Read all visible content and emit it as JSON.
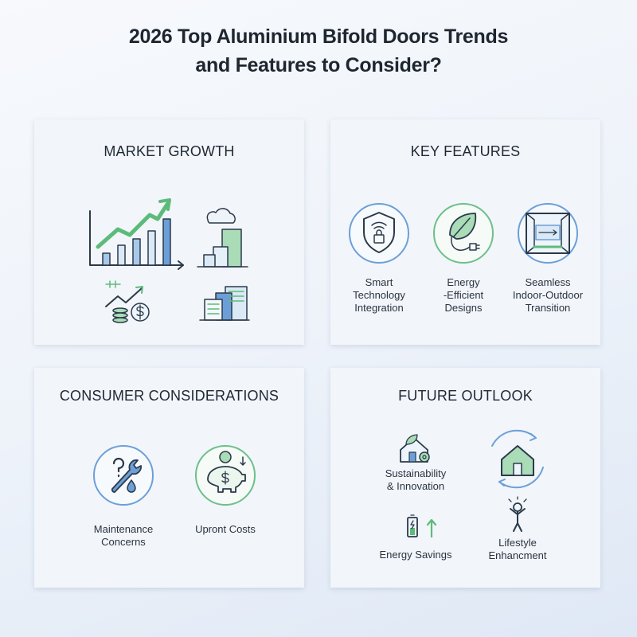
{
  "header": {
    "title_lines": [
      "2026 Top Aluminium Bifold Doors Trends",
      "and Features to Consider?"
    ]
  },
  "panels": [
    {
      "title": "MARKET GROWTH"
    },
    {
      "title": "KEY FEATURES",
      "items": [
        {
          "label_lines": [
            "Smart",
            "Technology",
            "Integration"
          ]
        },
        {
          "label_lines": [
            "Energy",
            "-Efficient",
            "Designs"
          ]
        },
        {
          "label_lines": [
            "Seamless",
            "Indoor-Outdoor",
            "Transition"
          ]
        }
      ]
    },
    {
      "title": "CONSUMER CONSIDERATIONS",
      "items": [
        {
          "label_lines": [
            "Maintenance",
            "Concerns"
          ]
        },
        {
          "label_lines": [
            "Upront Costs"
          ]
        }
      ]
    },
    {
      "title": "FUTURE OUTLOOK",
      "items": [
        {
          "label_lines": [
            "Sustainability",
            "& Innovation"
          ]
        },
        {
          "label_lines": [
            "Energy Savings"
          ]
        },
        {
          "label_lines": [
            "Lifestyle",
            "Enhancment"
          ]
        }
      ]
    }
  ]
}
